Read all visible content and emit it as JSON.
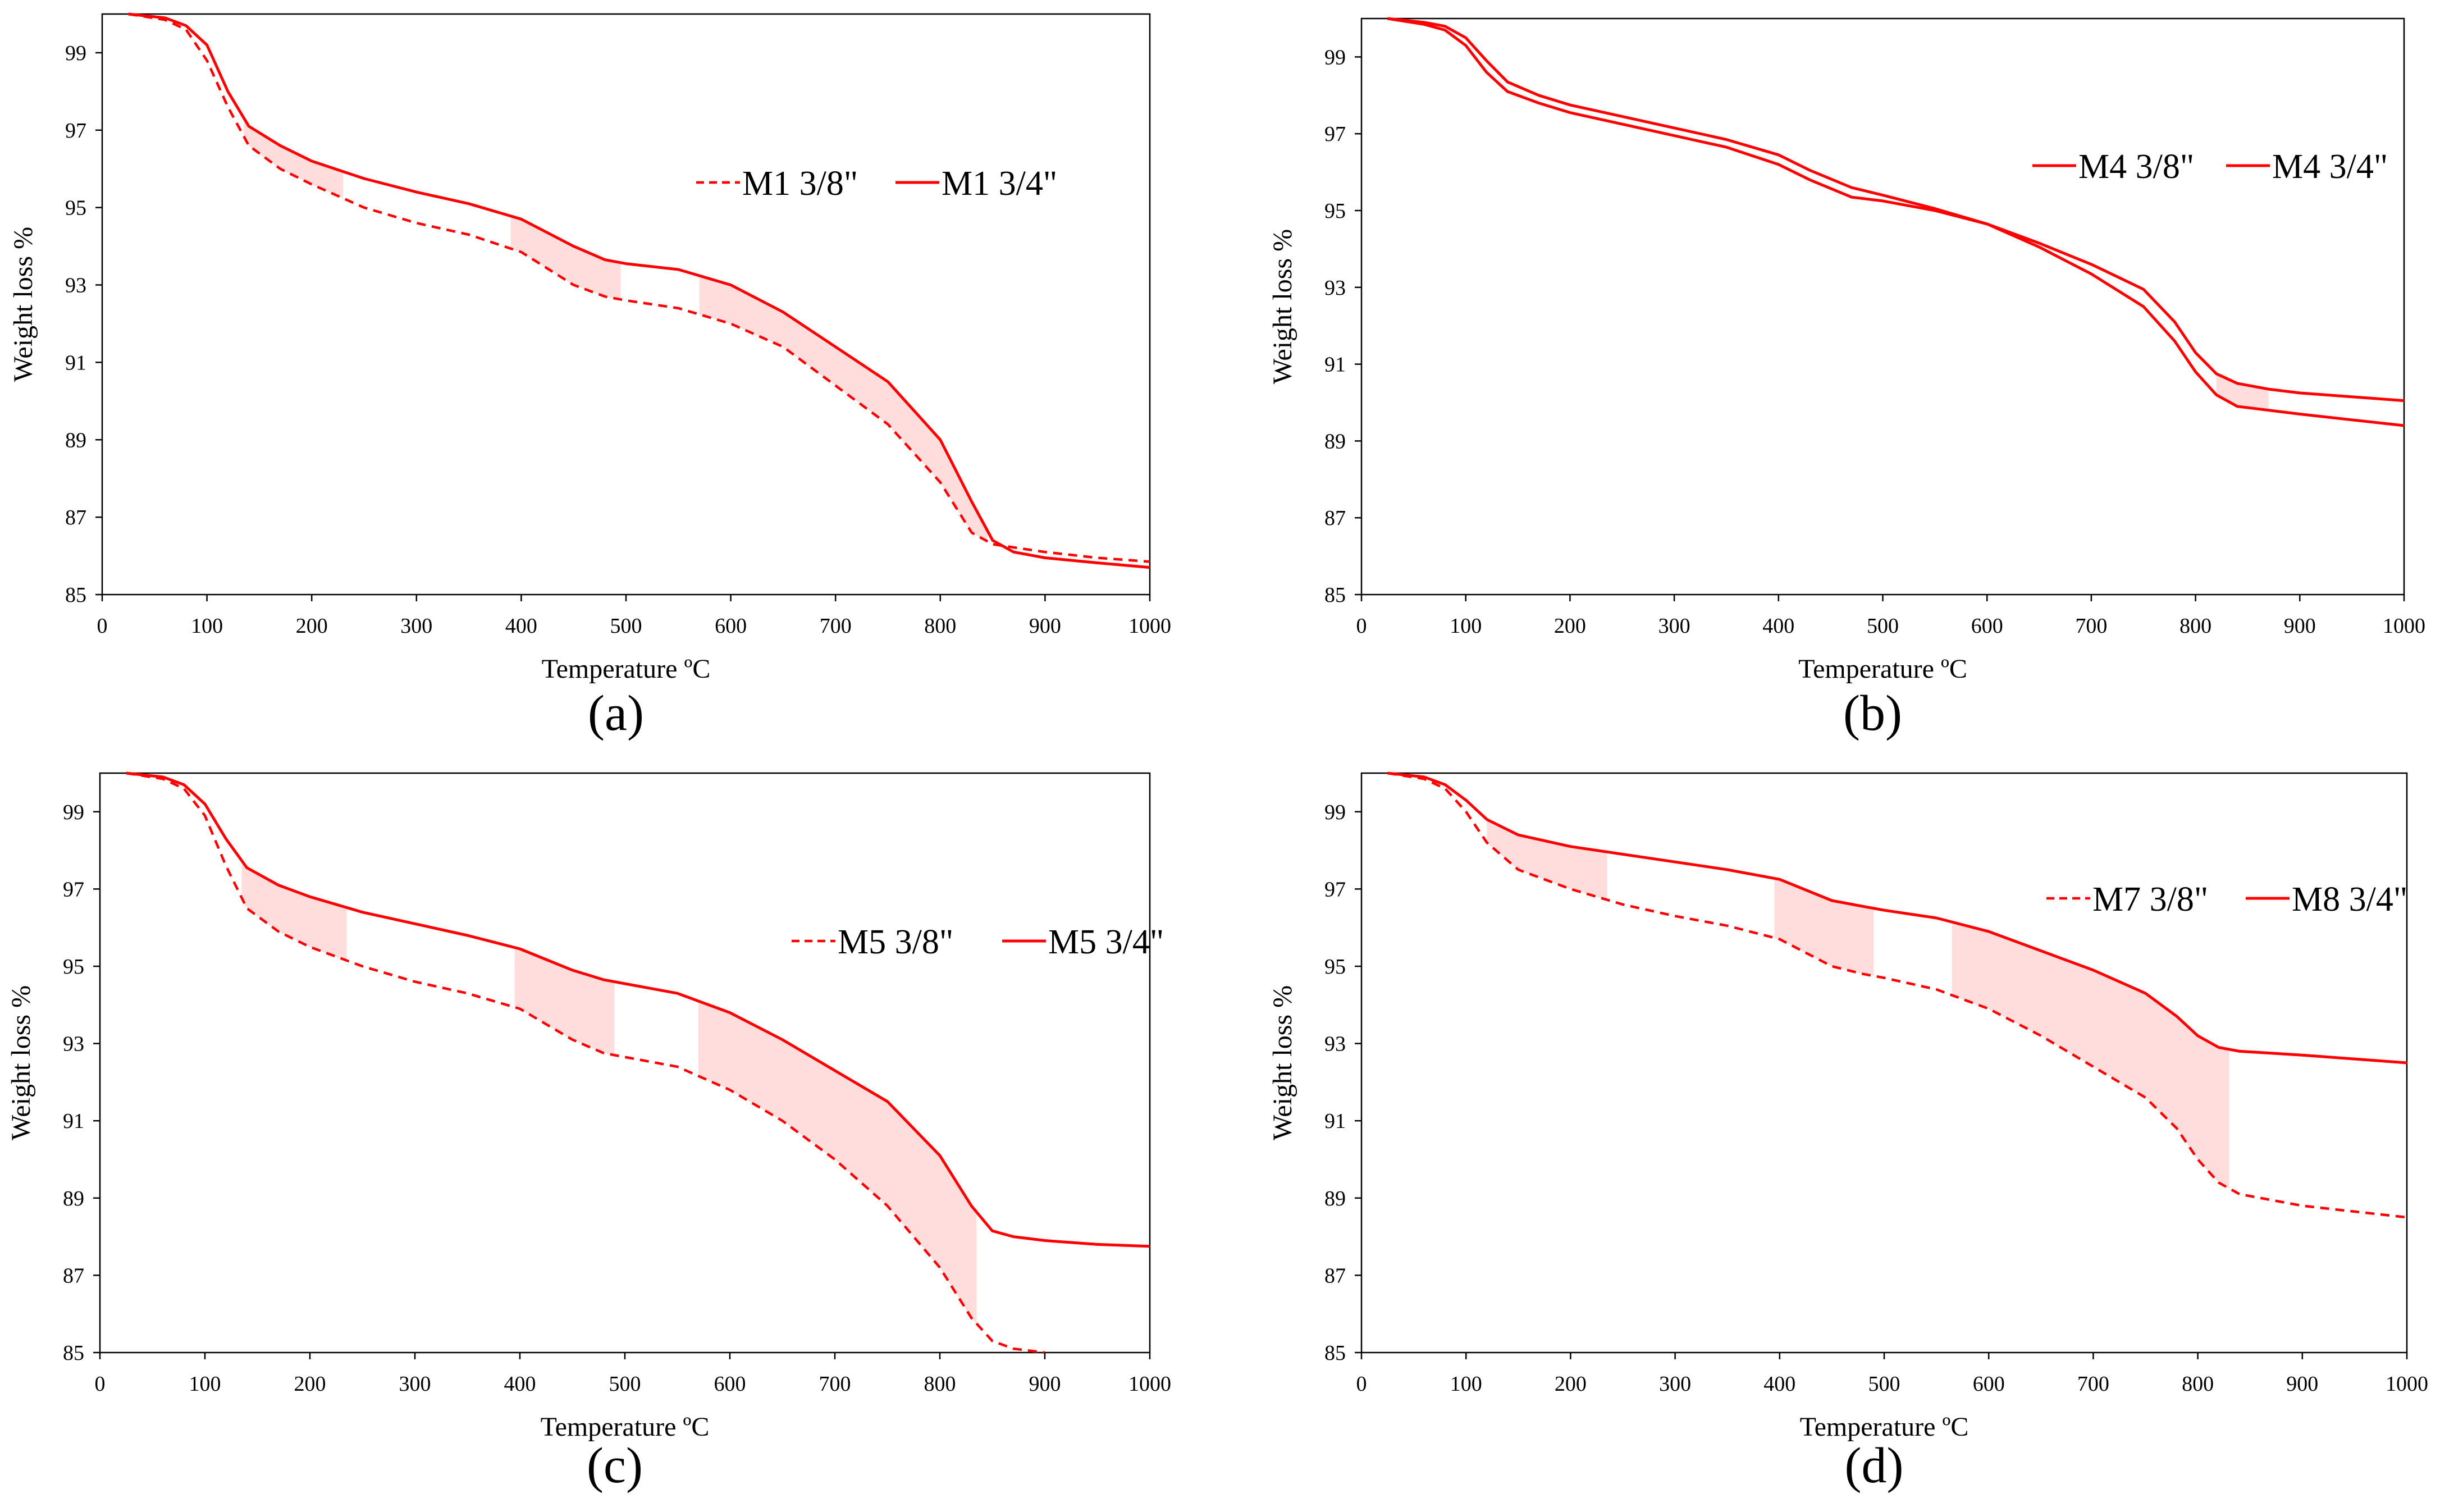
{
  "chart_data": [
    {
      "type": "line",
      "label": "(a)",
      "xlabel": "Temperature ºC",
      "ylabel": "Weight loss %",
      "xlim": [
        0,
        1000
      ],
      "ylim": [
        85,
        100
      ],
      "xticks": [
        0,
        100,
        200,
        300,
        400,
        500,
        600,
        700,
        800,
        900,
        1000
      ],
      "yticks": [
        85,
        87,
        89,
        91,
        93,
        95,
        97,
        99
      ],
      "legend_position": "upper-right",
      "series": [
        {
          "name": "M1 3/8\"",
          "style": "dashed",
          "color": "#ff0000",
          "x": [
            25,
            60,
            80,
            100,
            120,
            140,
            170,
            200,
            250,
            300,
            350,
            400,
            450,
            480,
            500,
            550,
            600,
            650,
            700,
            750,
            800,
            830,
            850,
            900,
            950,
            1000
          ],
          "y": [
            100,
            99.85,
            99.6,
            98.8,
            97.6,
            96.6,
            96.0,
            95.6,
            95.0,
            94.6,
            94.3,
            93.85,
            93.0,
            92.7,
            92.6,
            92.4,
            92.0,
            91.4,
            90.4,
            89.4,
            87.9,
            86.6,
            86.3,
            86.1,
            85.95,
            85.85
          ]
        },
        {
          "name": "M1 3/4\"",
          "style": "solid",
          "color": "#ff0000",
          "x": [
            25,
            60,
            80,
            100,
            120,
            140,
            170,
            200,
            250,
            300,
            350,
            400,
            450,
            480,
            500,
            550,
            600,
            650,
            700,
            750,
            800,
            830,
            850,
            870,
            900,
            950,
            1000
          ],
          "y": [
            100,
            99.9,
            99.7,
            99.2,
            98.0,
            97.1,
            96.6,
            96.2,
            95.75,
            95.4,
            95.1,
            94.7,
            94.0,
            93.65,
            93.55,
            93.4,
            93.0,
            92.3,
            91.4,
            90.5,
            89.0,
            87.4,
            86.4,
            86.1,
            85.95,
            85.82,
            85.7
          ]
        }
      ],
      "shaded_ranges": [
        [
          135,
          230
        ],
        [
          390,
          495
        ],
        [
          570,
          845
        ]
      ]
    },
    {
      "type": "line",
      "label": "(b)",
      "xlabel": "Temperature ºC",
      "ylabel": "Weight loss %",
      "xlim": [
        0,
        1000
      ],
      "ylim": [
        85,
        100
      ],
      "xticks": [
        0,
        100,
        200,
        300,
        400,
        500,
        600,
        700,
        800,
        900,
        1000
      ],
      "yticks": [
        85,
        87,
        89,
        91,
        93,
        95,
        97,
        99
      ],
      "legend_position": "upper-right",
      "series": [
        {
          "name": "M4 3/8\"",
          "style": "solid",
          "color": "#ff0000",
          "x": [
            25,
            60,
            80,
            100,
            120,
            140,
            170,
            200,
            250,
            300,
            350,
            400,
            430,
            470,
            500,
            550,
            600,
            650,
            700,
            750,
            780,
            800,
            820,
            840,
            900,
            950,
            1000
          ],
          "y": [
            100,
            99.85,
            99.7,
            99.3,
            98.6,
            98.1,
            97.8,
            97.55,
            97.25,
            96.95,
            96.65,
            96.2,
            95.8,
            95.35,
            95.25,
            95.0,
            94.65,
            94.05,
            93.35,
            92.5,
            91.6,
            90.8,
            90.2,
            89.9,
            89.7,
            89.55,
            89.4
          ]
        },
        {
          "name": "M4 3/4\"",
          "style": "solid",
          "color": "#ff0000",
          "x": [
            25,
            60,
            80,
            100,
            120,
            140,
            170,
            200,
            250,
            300,
            350,
            400,
            430,
            470,
            500,
            550,
            600,
            650,
            700,
            750,
            780,
            800,
            820,
            840,
            870,
            900,
            950,
            1000
          ],
          "y": [
            100,
            99.9,
            99.8,
            99.5,
            98.9,
            98.35,
            98.0,
            97.75,
            97.45,
            97.15,
            96.85,
            96.45,
            96.05,
            95.6,
            95.4,
            95.05,
            94.65,
            94.15,
            93.6,
            92.95,
            92.1,
            91.3,
            90.75,
            90.5,
            90.35,
            90.25,
            90.15,
            90.05
          ]
        }
      ],
      "shaded_ranges": [
        [
          820,
          870
        ]
      ]
    },
    {
      "type": "line",
      "label": "(c)",
      "xlabel": "Temperature ºC",
      "ylabel": "Weight loss  %",
      "xlim": [
        0,
        1000
      ],
      "ylim": [
        85,
        100
      ],
      "xticks": [
        0,
        100,
        200,
        300,
        400,
        500,
        600,
        700,
        800,
        900,
        1000
      ],
      "yticks": [
        85,
        87,
        89,
        91,
        93,
        95,
        97,
        99
      ],
      "legend_position": "upper-right",
      "series": [
        {
          "name": "M5 3/8\"",
          "style": "dashed",
          "color": "#ff0000",
          "x": [
            25,
            60,
            80,
            100,
            120,
            140,
            170,
            200,
            250,
            300,
            350,
            400,
            450,
            480,
            500,
            550,
            600,
            650,
            700,
            750,
            800,
            830,
            850,
            870,
            900
          ],
          "y": [
            100,
            99.85,
            99.6,
            98.9,
            97.6,
            96.5,
            95.9,
            95.5,
            95.0,
            94.6,
            94.3,
            93.9,
            93.1,
            92.75,
            92.65,
            92.4,
            91.8,
            91.0,
            90.0,
            88.8,
            87.2,
            85.9,
            85.3,
            85.1,
            85.0
          ]
        },
        {
          "name": "M5 3/4\"",
          "style": "solid",
          "color": "#ff0000",
          "x": [
            25,
            60,
            80,
            100,
            120,
            140,
            170,
            200,
            250,
            300,
            350,
            400,
            450,
            480,
            500,
            550,
            600,
            650,
            700,
            750,
            800,
            830,
            850,
            870,
            900,
            950,
            1000
          ],
          "y": [
            100,
            99.9,
            99.7,
            99.2,
            98.3,
            97.55,
            97.1,
            96.8,
            96.4,
            96.1,
            95.8,
            95.45,
            94.9,
            94.65,
            94.55,
            94.3,
            93.8,
            93.1,
            92.3,
            91.5,
            90.1,
            88.8,
            88.15,
            88.0,
            87.9,
            87.8,
            87.75
          ]
        }
      ],
      "shaded_ranges": [
        [
          135,
          235
        ],
        [
          395,
          490
        ],
        [
          570,
          835
        ]
      ]
    },
    {
      "type": "line",
      "label": "(d)",
      "xlabel": "Temperature ºC",
      "ylabel": "Weight loss  %",
      "xlim": [
        0,
        1000
      ],
      "ylim": [
        85,
        100
      ],
      "xticks": [
        0,
        100,
        200,
        300,
        400,
        500,
        600,
        700,
        800,
        900,
        1000
      ],
      "yticks": [
        85,
        87,
        89,
        91,
        93,
        95,
        97,
        99
      ],
      "legend_position": "upper-right",
      "series": [
        {
          "name": "M7 3/8\"",
          "style": "dashed",
          "color": "#ff0000",
          "x": [
            25,
            60,
            80,
            100,
            120,
            150,
            200,
            250,
            300,
            350,
            400,
            450,
            480,
            500,
            550,
            600,
            650,
            700,
            750,
            780,
            800,
            820,
            840,
            870,
            900,
            950,
            1000
          ],
          "y": [
            100,
            99.85,
            99.6,
            99.0,
            98.2,
            97.5,
            97.0,
            96.6,
            96.3,
            96.05,
            95.7,
            95.0,
            94.8,
            94.7,
            94.4,
            93.9,
            93.2,
            92.4,
            91.6,
            90.8,
            90.0,
            89.4,
            89.1,
            88.95,
            88.8,
            88.65,
            88.5
          ]
        },
        {
          "name": "M8 3/4\"",
          "style": "solid",
          "color": "#ff0000",
          "x": [
            25,
            60,
            80,
            100,
            120,
            150,
            200,
            250,
            300,
            350,
            400,
            450,
            480,
            500,
            550,
            600,
            650,
            700,
            750,
            780,
            800,
            820,
            840,
            870,
            900,
            950,
            1000
          ],
          "y": [
            100,
            99.9,
            99.7,
            99.3,
            98.8,
            98.4,
            98.1,
            97.9,
            97.7,
            97.5,
            97.25,
            96.7,
            96.55,
            96.45,
            96.25,
            95.9,
            95.4,
            94.9,
            94.3,
            93.7,
            93.2,
            92.9,
            92.8,
            92.75,
            92.7,
            92.6,
            92.5
          ]
        }
      ],
      "shaded_ranges": [
        [
          120,
          235
        ],
        [
          395,
          490
        ],
        [
          565,
          830
        ]
      ]
    }
  ]
}
